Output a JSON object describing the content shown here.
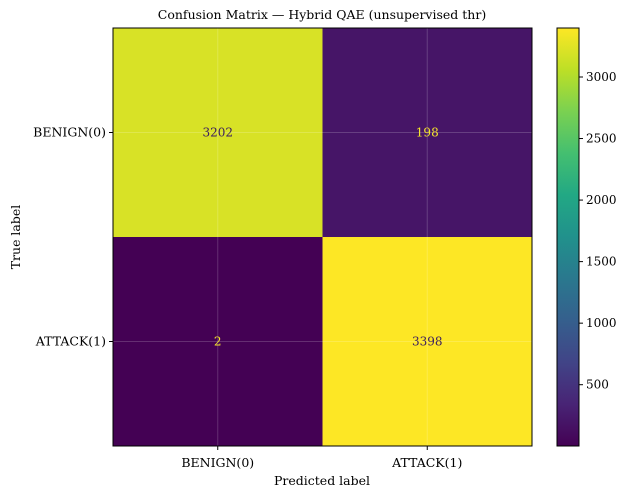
{
  "chart_data": {
    "type": "heatmap",
    "title": "Confusion Matrix — Hybrid QAE (unsupervised thr)",
    "xlabel": "Predicted label",
    "ylabel": "True label",
    "x_categories": [
      "BENIGN(0)",
      "ATTACK(1)"
    ],
    "y_categories": [
      "BENIGN(0)",
      "ATTACK(1)"
    ],
    "values": [
      [
        3202,
        198
      ],
      [
        2,
        3398
      ]
    ],
    "colormap": "viridis",
    "colorbar": {
      "vmin": 2,
      "vmax": 3398,
      "ticks": [
        500,
        1000,
        1500,
        2000,
        2500,
        3000
      ]
    },
    "grid": true
  },
  "colors": {
    "text_on_dark": "#f5e62b",
    "text_on_light": "#3b1e5f"
  }
}
